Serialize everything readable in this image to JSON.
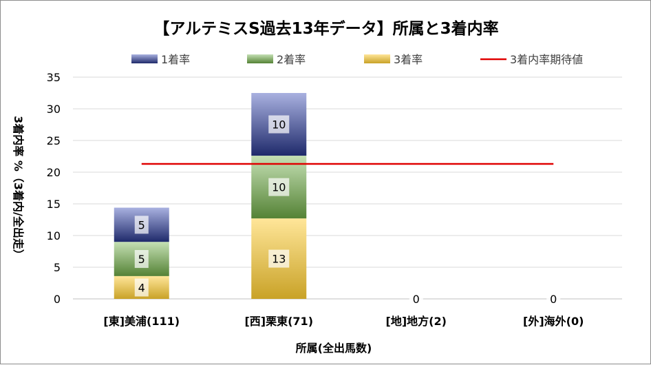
{
  "chart_data": {
    "type": "bar",
    "stacked": true,
    "title": "【アルテミスS過去13年データ】所属と3着内率",
    "xlabel": "所属(全出馬数)",
    "ylabel": "3着内率 %（3着内/全出走）",
    "categories": [
      "[東]美浦(111)",
      "[西]栗東(71)",
      "[地]地方(2)",
      "[外]海外(0)"
    ],
    "ylim": [
      0,
      35
    ],
    "yticks": [
      0,
      5,
      10,
      15,
      20,
      25,
      30,
      35
    ],
    "grid": true,
    "legend_position": "top",
    "series": [
      {
        "name": "3着率",
        "values": [
          3.6,
          12.7,
          0,
          0
        ],
        "labels": [
          "4",
          "13",
          "0",
          "0"
        ],
        "color_top": "#ffe699",
        "color_bottom": "#c9a227"
      },
      {
        "name": "2着率",
        "values": [
          5.4,
          9.9,
          0,
          0
        ],
        "labels": [
          "5",
          "10",
          "",
          ""
        ],
        "color_top": "#c5e0b4",
        "color_bottom": "#548235"
      },
      {
        "name": "1着率",
        "values": [
          5.4,
          9.9,
          0,
          0
        ],
        "labels": [
          "5",
          "10",
          "",
          ""
        ],
        "color_top": "#a9b1e0",
        "color_bottom": "#1f2a6b"
      }
    ],
    "legend_order": [
      "1着率",
      "2着率",
      "3着率",
      "3着内率期待値"
    ],
    "reference_line": {
      "name": "3着内率期待値",
      "value": 21.3,
      "color": "#e00000"
    }
  }
}
